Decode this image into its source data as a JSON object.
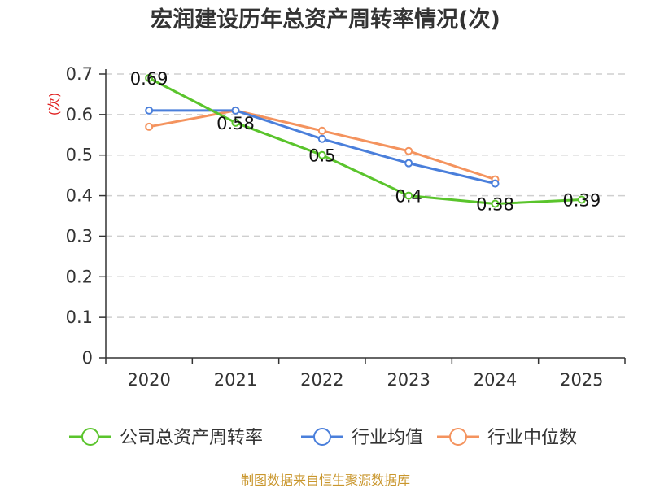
{
  "chart_data": {
    "type": "line",
    "title": "宏润建设历年总资产周转率情况(次)",
    "ylabel": "(次)",
    "xlabel": "",
    "categories": [
      "2020",
      "2021",
      "2022",
      "2023",
      "2024",
      "2025"
    ],
    "ylim": [
      0,
      0.7
    ],
    "yticks": [
      0,
      0.1,
      0.2,
      0.3,
      0.4,
      0.5,
      0.6,
      0.7
    ],
    "ytick_labels": [
      "0",
      "0.1",
      "0.2",
      "0.3",
      "0.4",
      "0.5",
      "0.6",
      "0.7"
    ],
    "grid": true,
    "legend_position": "bottom",
    "series": [
      {
        "name": "公司总资产周转率",
        "color": "#5ac42c",
        "values": [
          0.69,
          0.58,
          0.5,
          0.4,
          0.38,
          0.39
        ],
        "labels": [
          "0.69",
          "0.58",
          "0.5",
          "0.4",
          "0.38",
          "0.39"
        ],
        "show_labels": true
      },
      {
        "name": "行业均值",
        "color": "#4a7fdb",
        "values": [
          0.61,
          0.61,
          0.54,
          0.48,
          0.43,
          null
        ],
        "show_labels": false
      },
      {
        "name": "行业中位数",
        "color": "#f4935e",
        "values": [
          0.57,
          0.61,
          0.56,
          0.51,
          0.44,
          null
        ],
        "show_labels": false
      }
    ]
  },
  "source_note": "制图数据来自恒生聚源数据库"
}
